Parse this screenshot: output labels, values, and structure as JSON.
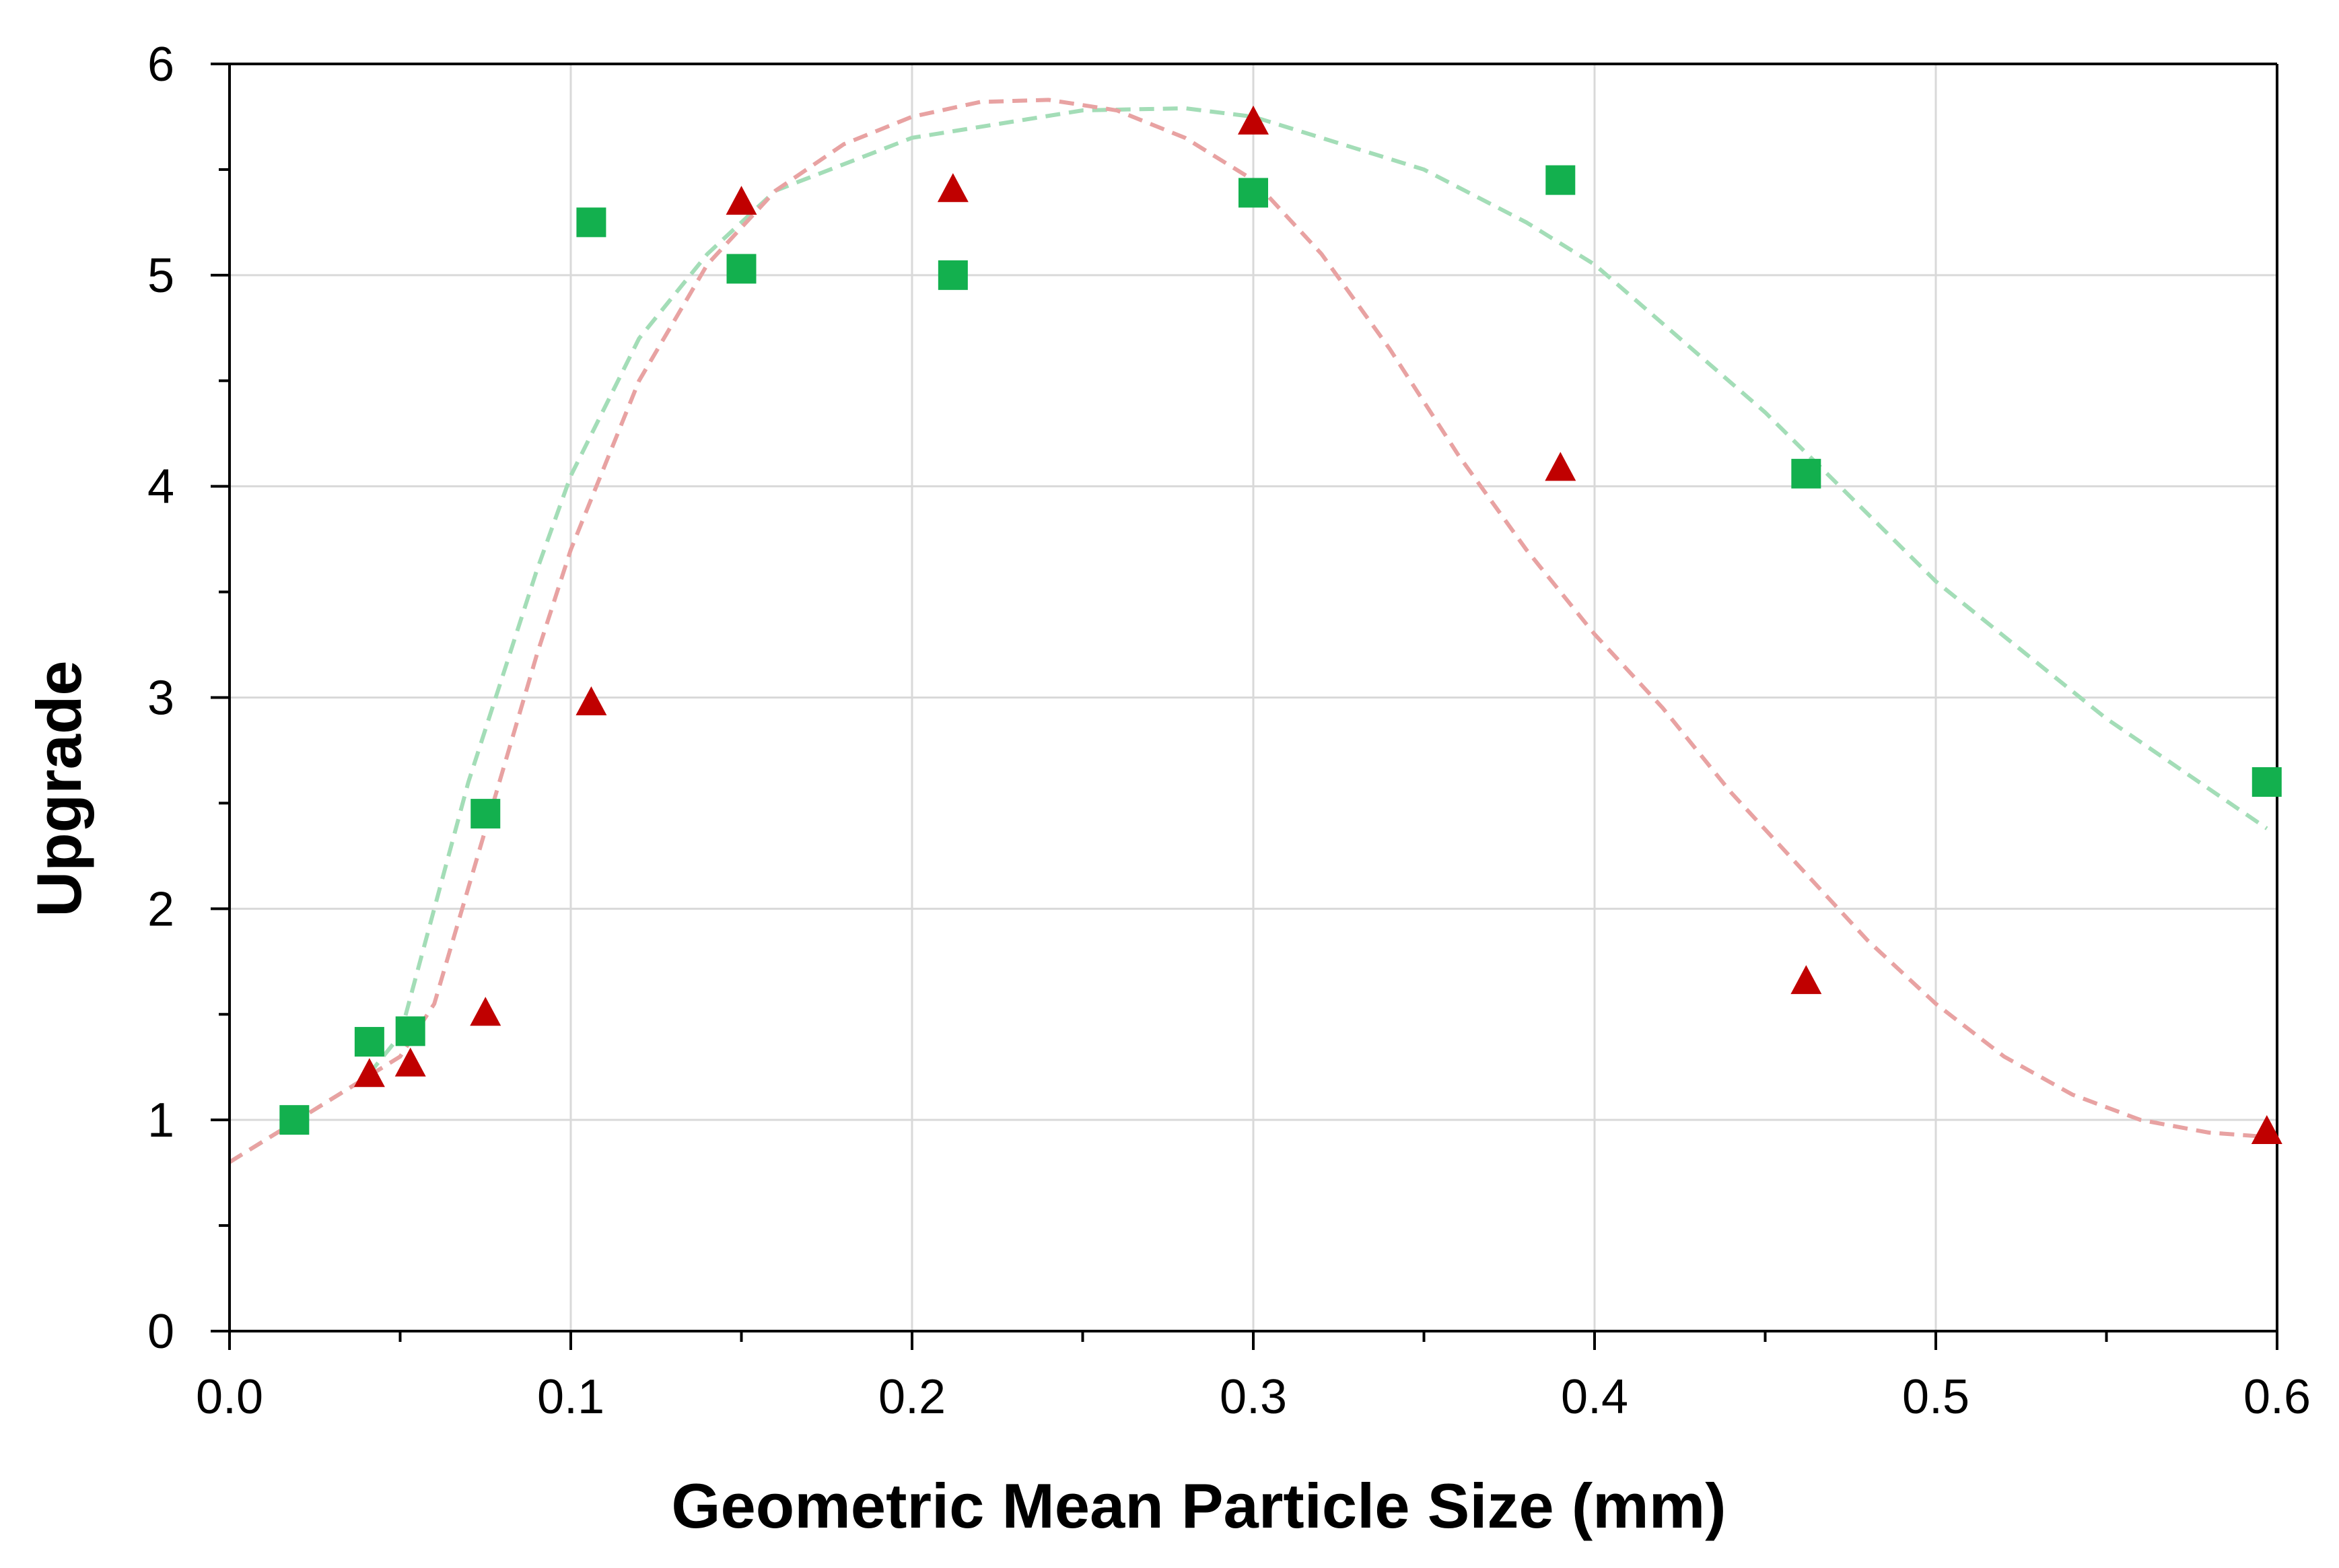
{
  "chart_data": {
    "type": "scatter",
    "title": "",
    "xlabel": "Geometric Mean Particle Size (mm)",
    "ylabel": "Upgrade",
    "xlim": [
      0.0,
      0.6
    ],
    "ylim": [
      0,
      6
    ],
    "x_ticks": [
      "0.0",
      "0.1",
      "0.2",
      "0.3",
      "0.4",
      "0.5",
      "0.6"
    ],
    "y_ticks": [
      "0",
      "1",
      "2",
      "3",
      "4",
      "5",
      "6"
    ],
    "grid": true,
    "legend": "none",
    "series": [
      {
        "name": "squares",
        "marker": "square",
        "color": "#13B04E",
        "points": [
          [
            0.019,
            1.0
          ],
          [
            0.041,
            1.37
          ],
          [
            0.053,
            1.42
          ],
          [
            0.075,
            2.45
          ],
          [
            0.106,
            5.25
          ],
          [
            0.15,
            5.03
          ],
          [
            0.212,
            5.0
          ],
          [
            0.3,
            5.39
          ],
          [
            0.39,
            5.45
          ],
          [
            0.462,
            4.06
          ],
          [
            0.597,
            2.6
          ]
        ],
        "trendline": {
          "style": "dashed",
          "color": "#A3DDB7",
          "points": [
            [
              0.0,
              0.8
            ],
            [
              0.02,
              1.0
            ],
            [
              0.04,
              1.2
            ],
            [
              0.05,
              1.4
            ],
            [
              0.06,
              2.0
            ],
            [
              0.07,
              2.6
            ],
            [
              0.08,
              3.1
            ],
            [
              0.09,
              3.6
            ],
            [
              0.1,
              4.05
            ],
            [
              0.12,
              4.7
            ],
            [
              0.14,
              5.1
            ],
            [
              0.16,
              5.4
            ],
            [
              0.2,
              5.65
            ],
            [
              0.25,
              5.78
            ],
            [
              0.28,
              5.79
            ],
            [
              0.3,
              5.75
            ],
            [
              0.35,
              5.5
            ],
            [
              0.38,
              5.25
            ],
            [
              0.4,
              5.05
            ],
            [
              0.45,
              4.35
            ],
            [
              0.5,
              3.55
            ],
            [
              0.55,
              2.9
            ],
            [
              0.597,
              2.38
            ]
          ]
        }
      },
      {
        "name": "triangles",
        "marker": "triangle",
        "color": "#C00000",
        "points": [
          [
            0.041,
            1.21
          ],
          [
            0.053,
            1.26
          ],
          [
            0.075,
            1.5
          ],
          [
            0.106,
            2.97
          ],
          [
            0.15,
            5.34
          ],
          [
            0.212,
            5.4
          ],
          [
            0.3,
            5.72
          ],
          [
            0.39,
            4.08
          ],
          [
            0.462,
            1.65
          ],
          [
            0.597,
            0.94
          ]
        ],
        "trendline": {
          "style": "dashed",
          "color": "#E8A2A2",
          "points": [
            [
              0.0,
              0.8
            ],
            [
              0.02,
              1.0
            ],
            [
              0.04,
              1.2
            ],
            [
              0.05,
              1.3
            ],
            [
              0.06,
              1.55
            ],
            [
              0.07,
              2.1
            ],
            [
              0.08,
              2.65
            ],
            [
              0.09,
              3.2
            ],
            [
              0.1,
              3.7
            ],
            [
              0.12,
              4.5
            ],
            [
              0.14,
              5.05
            ],
            [
              0.16,
              5.4
            ],
            [
              0.18,
              5.62
            ],
            [
              0.2,
              5.75
            ],
            [
              0.22,
              5.82
            ],
            [
              0.24,
              5.83
            ],
            [
              0.26,
              5.78
            ],
            [
              0.28,
              5.65
            ],
            [
              0.3,
              5.45
            ],
            [
              0.32,
              5.1
            ],
            [
              0.34,
              4.65
            ],
            [
              0.36,
              4.15
            ],
            [
              0.38,
              3.7
            ],
            [
              0.4,
              3.3
            ],
            [
              0.42,
              2.95
            ],
            [
              0.44,
              2.55
            ],
            [
              0.46,
              2.2
            ],
            [
              0.48,
              1.85
            ],
            [
              0.5,
              1.55
            ],
            [
              0.52,
              1.3
            ],
            [
              0.54,
              1.12
            ],
            [
              0.56,
              1.0
            ],
            [
              0.58,
              0.94
            ],
            [
              0.597,
              0.92
            ]
          ]
        }
      }
    ]
  }
}
